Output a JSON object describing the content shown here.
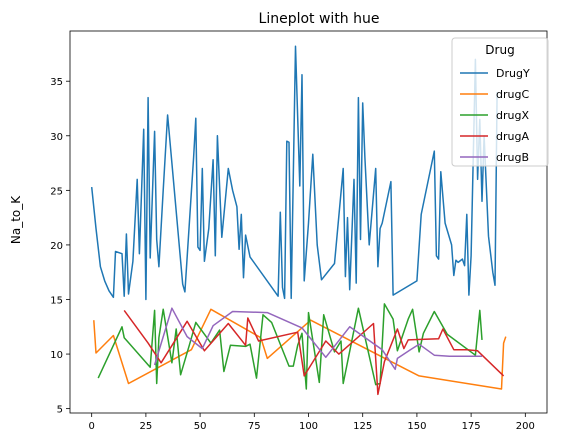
{
  "chart_data": {
    "type": "line",
    "title": "Lineplot with hue",
    "xlabel": "",
    "ylabel": "Na_to_K",
    "xlim": [
      -10,
      210
    ],
    "ylim": [
      4.6,
      39.6
    ],
    "xticks": [
      0,
      25,
      50,
      75,
      100,
      125,
      150,
      175,
      200
    ],
    "yticks": [
      5,
      10,
      15,
      20,
      25,
      30,
      35
    ],
    "grid": false,
    "legend": {
      "title": "Drug",
      "placement": "top-right"
    },
    "series": [
      {
        "name": "DrugY",
        "color": "#1f77b4",
        "points": [
          [
            0,
            25.3
          ],
          [
            2,
            21.5
          ],
          [
            4,
            18.0
          ],
          [
            6,
            16.7
          ],
          [
            8,
            15.8
          ],
          [
            10,
            15.2
          ],
          [
            11,
            19.4
          ],
          [
            14,
            19.2
          ],
          [
            15,
            15.3
          ],
          [
            16,
            21.0
          ],
          [
            17,
            15.5
          ],
          [
            19,
            18.5
          ],
          [
            21,
            26.0
          ],
          [
            22,
            19.2
          ],
          [
            23,
            25.0
          ],
          [
            24,
            30.6
          ],
          [
            25,
            15.0
          ],
          [
            26,
            33.5
          ],
          [
            27,
            18.8
          ],
          [
            29,
            30.4
          ],
          [
            30,
            20.5
          ],
          [
            31,
            18.0
          ],
          [
            33,
            25.0
          ],
          [
            35,
            31.9
          ],
          [
            37,
            27.5
          ],
          [
            42,
            16.4
          ],
          [
            43,
            15.7
          ],
          [
            47,
            28.0
          ],
          [
            48,
            31.6
          ],
          [
            49,
            19.8
          ],
          [
            50,
            19.5
          ],
          [
            51,
            27.0
          ],
          [
            52,
            18.5
          ],
          [
            54,
            21.5
          ],
          [
            56,
            27.8
          ],
          [
            57,
            19.0
          ],
          [
            58,
            30.0
          ],
          [
            60,
            20.7
          ],
          [
            63,
            27.0
          ],
          [
            65,
            25.0
          ],
          [
            67,
            23.5
          ],
          [
            68,
            19.6
          ],
          [
            69,
            22.8
          ],
          [
            70,
            17.0
          ],
          [
            71,
            20.9
          ],
          [
            73,
            18.9
          ],
          [
            86,
            15.3
          ],
          [
            87,
            23.0
          ],
          [
            88,
            16.1
          ],
          [
            89,
            15.1
          ],
          [
            90,
            29.5
          ],
          [
            91,
            29.4
          ],
          [
            92,
            15.1
          ],
          [
            94,
            38.2
          ],
          [
            96,
            25.4
          ],
          [
            97,
            35.6
          ],
          [
            98,
            16.7
          ],
          [
            100,
            22.0
          ],
          [
            102,
            28.3
          ],
          [
            104,
            20.0
          ],
          [
            106,
            16.8
          ],
          [
            112,
            18.3
          ],
          [
            116,
            27.0
          ],
          [
            117,
            17.1
          ],
          [
            118,
            22.5
          ],
          [
            119,
            15.9
          ],
          [
            121,
            26.0
          ],
          [
            122,
            16.5
          ],
          [
            123,
            33.5
          ],
          [
            124,
            20.5
          ],
          [
            125,
            33.0
          ],
          [
            126,
            28.0
          ],
          [
            128,
            20.0
          ],
          [
            131,
            27.0
          ],
          [
            132,
            18.0
          ],
          [
            133,
            21.5
          ],
          [
            134,
            22.0
          ],
          [
            138,
            25.8
          ],
          [
            139,
            15.4
          ],
          [
            150,
            16.7
          ],
          [
            152,
            22.8
          ],
          [
            158,
            28.6
          ],
          [
            159,
            19.0
          ],
          [
            160,
            18.7
          ],
          [
            161,
            26.7
          ],
          [
            163,
            22.0
          ],
          [
            166,
            20.0
          ],
          [
            167,
            17.2
          ],
          [
            168,
            18.6
          ],
          [
            169,
            18.4
          ],
          [
            171,
            18.7
          ],
          [
            172,
            18.1
          ],
          [
            173,
            22.8
          ],
          [
            174,
            15.4
          ],
          [
            175,
            19.0
          ],
          [
            177,
            37.0
          ],
          [
            178,
            26.0
          ],
          [
            179,
            31.5
          ],
          [
            180,
            24.0
          ],
          [
            181,
            30.0
          ],
          [
            183,
            20.8
          ],
          [
            185,
            17.5
          ],
          [
            186,
            16.3
          ],
          [
            187,
            34.0
          ]
        ]
      },
      {
        "name": "drugC",
        "color": "#ff7f0e",
        "points": [
          [
            1,
            13.1
          ],
          [
            2,
            10.1
          ],
          [
            10,
            11.7
          ],
          [
            17,
            7.3
          ],
          [
            46,
            10.4
          ],
          [
            55,
            14.1
          ],
          [
            78,
            11.5
          ],
          [
            81,
            9.6
          ],
          [
            101,
            13.1
          ],
          [
            145,
            8.6
          ],
          [
            151,
            8.0
          ],
          [
            189,
            6.8
          ],
          [
            190,
            11.0
          ],
          [
            191,
            11.6
          ]
        ]
      },
      {
        "name": "drugX",
        "color": "#2ca02c",
        "points": [
          [
            3,
            7.8
          ],
          [
            14,
            12.5
          ],
          [
            15,
            11.5
          ],
          [
            27,
            8.8
          ],
          [
            29,
            14.0
          ],
          [
            30,
            7.3
          ],
          [
            31,
            11.5
          ],
          [
            33,
            14.1
          ],
          [
            37,
            9.2
          ],
          [
            39,
            12.3
          ],
          [
            41,
            8.1
          ],
          [
            45,
            10.8
          ],
          [
            48,
            12.9
          ],
          [
            55,
            11.0
          ],
          [
            59,
            12.2
          ],
          [
            61,
            8.4
          ],
          [
            64,
            10.8
          ],
          [
            71,
            10.7
          ],
          [
            73,
            10.9
          ],
          [
            76,
            7.8
          ],
          [
            79,
            13.6
          ],
          [
            83,
            12.9
          ],
          [
            91,
            8.9
          ],
          [
            93,
            8.9
          ],
          [
            95,
            10.8
          ],
          [
            97,
            11.9
          ],
          [
            99,
            6.8
          ],
          [
            100,
            13.8
          ],
          [
            105,
            7.4
          ],
          [
            107,
            13.6
          ],
          [
            112,
            10.2
          ],
          [
            115,
            11.2
          ],
          [
            116,
            7.3
          ],
          [
            123,
            14.2
          ],
          [
            131,
            7.2
          ],
          [
            133,
            7.3
          ],
          [
            135,
            14.6
          ],
          [
            139,
            13.2
          ],
          [
            141,
            10.3
          ],
          [
            146,
            13.2
          ],
          [
            148,
            14.1
          ],
          [
            151,
            10.2
          ],
          [
            153,
            11.9
          ],
          [
            158,
            13.9
          ],
          [
            164,
            11.8
          ],
          [
            177,
            9.9
          ],
          [
            179,
            14.0
          ],
          [
            180,
            11.3
          ]
        ]
      },
      {
        "name": "drugA",
        "color": "#d62728",
        "points": [
          [
            15,
            14.0
          ],
          [
            26,
            11.0
          ],
          [
            32,
            9.2
          ],
          [
            44,
            13.0
          ],
          [
            52,
            10.3
          ],
          [
            63,
            12.8
          ],
          [
            71,
            10.8
          ],
          [
            72,
            13.3
          ],
          [
            77,
            11.2
          ],
          [
            95,
            12.0
          ],
          [
            98,
            8.0
          ],
          [
            108,
            11.2
          ],
          [
            114,
            10.0
          ],
          [
            130,
            12.8
          ],
          [
            132,
            6.3
          ],
          [
            135,
            9.3
          ],
          [
            141,
            12.3
          ],
          [
            144,
            10.5
          ],
          [
            146,
            11.3
          ],
          [
            160,
            11.4
          ],
          [
            162,
            12.3
          ],
          [
            167,
            10.4
          ],
          [
            173,
            10.4
          ],
          [
            178,
            10.3
          ],
          [
            190,
            8.0
          ]
        ]
      },
      {
        "name": "drugB",
        "color": "#9467bd",
        "points": [
          [
            29,
            9.0
          ],
          [
            37,
            14.2
          ],
          [
            44,
            11.6
          ],
          [
            51,
            10.5
          ],
          [
            56,
            12.6
          ],
          [
            65,
            13.9
          ],
          [
            81,
            13.8
          ],
          [
            97,
            12.4
          ],
          [
            108,
            9.7
          ],
          [
            119,
            12.5
          ],
          [
            134,
            10.4
          ],
          [
            140,
            8.6
          ],
          [
            141,
            9.6
          ],
          [
            147,
            10.4
          ],
          [
            151,
            10.9
          ],
          [
            158,
            9.9
          ],
          [
            165,
            9.8
          ],
          [
            180,
            9.8
          ]
        ]
      }
    ]
  }
}
